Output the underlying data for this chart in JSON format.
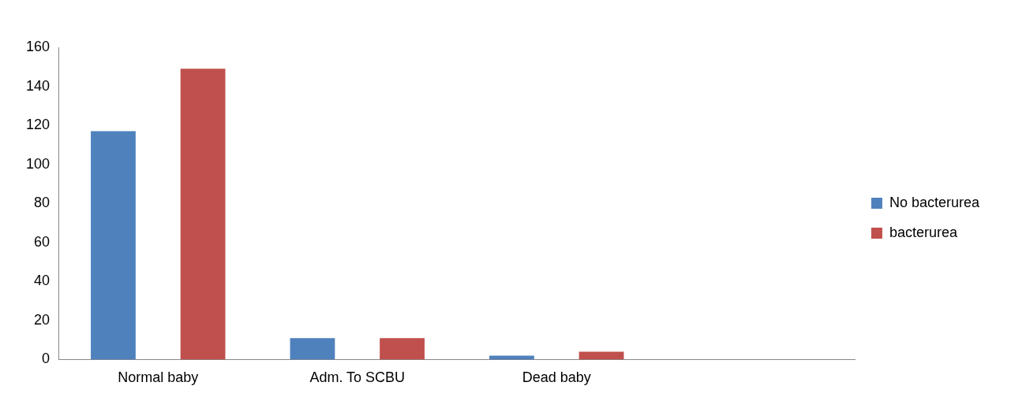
{
  "chart_data": {
    "type": "bar",
    "categories": [
      "Normal baby",
      "Adm. To SCBU",
      "Dead baby",
      null
    ],
    "series": [
      {
        "name": "No bacterurea",
        "color": "#4f81bd",
        "values": [
          117,
          11,
          2,
          null
        ]
      },
      {
        "name": "bacterurea",
        "color": "#c0504d",
        "values": [
          149,
          11,
          4,
          null
        ]
      }
    ],
    "ylim": [
      0,
      160
    ],
    "yticks": [
      0,
      20,
      40,
      60,
      80,
      100,
      120,
      140,
      160
    ],
    "grid": false,
    "legend": "right"
  }
}
